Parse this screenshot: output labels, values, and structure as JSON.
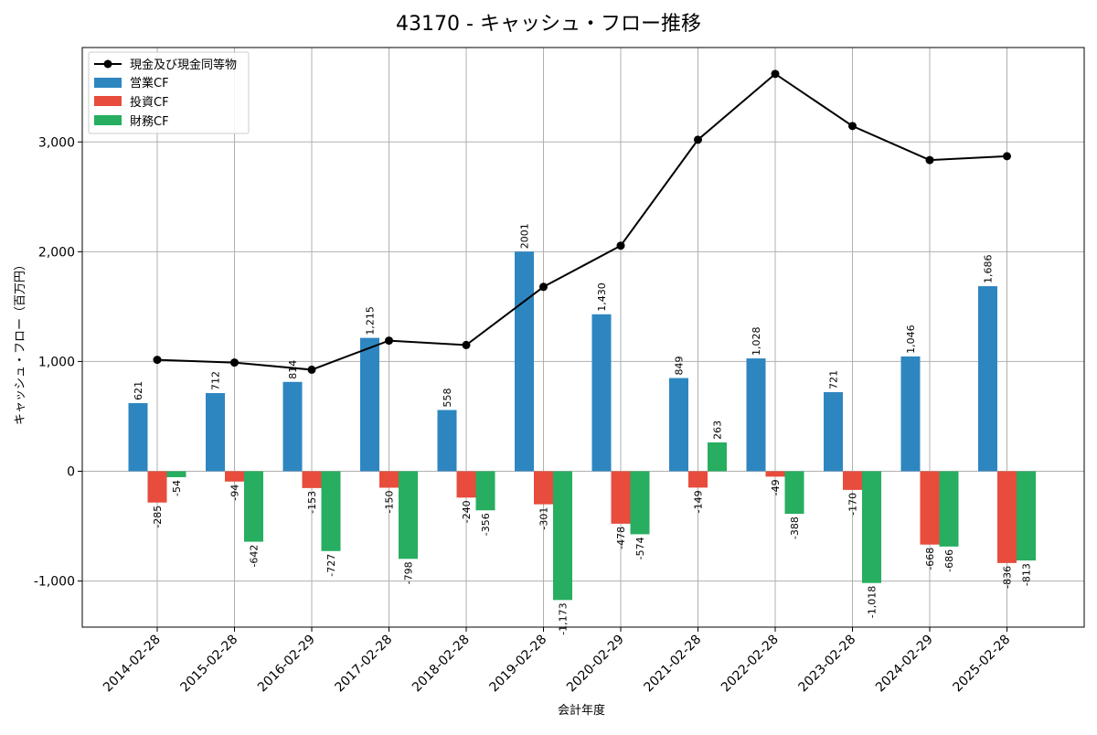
{
  "chart_data": {
    "type": "bar",
    "title": "43170 - キャッシュ・フロー推移",
    "xlabel": "会計年度",
    "ylabel": "キャッシュ・フロー（百万円）",
    "ylim": [
      -1420,
      3860
    ],
    "yticks": [
      -1000,
      0,
      1000,
      2000,
      3000
    ],
    "ytick_labels": [
      "-1,000",
      "0",
      "1,000",
      "2,000",
      "3,000"
    ],
    "grid": true,
    "legend_position": "top-left",
    "categories": [
      "2014-02-28",
      "2015-02-28",
      "2016-02-29",
      "2017-02-28",
      "2018-02-28",
      "2019-02-28",
      "2020-02-29",
      "2021-02-28",
      "2022-02-28",
      "2023-02-28",
      "2024-02-29",
      "2025-02-28"
    ],
    "series": [
      {
        "name": "営業CF",
        "kind": "bar",
        "color": "#2e86c1",
        "values": [
          621,
          712,
          814,
          1215,
          558,
          2001,
          1430,
          849,
          1028,
          721,
          1046,
          1686
        ],
        "labels": [
          "621",
          "712",
          "814",
          "1,215",
          "558",
          "2001",
          "1,430",
          "849",
          "1,028",
          "721",
          "1,046",
          "1,686"
        ]
      },
      {
        "name": "投資CF",
        "kind": "bar",
        "color": "#e74c3c",
        "values": [
          -285,
          -94,
          -153,
          -150,
          -240,
          -301,
          -478,
          -149,
          -49,
          -170,
          -668,
          -836
        ],
        "labels": [
          "-285",
          "-94",
          "-153",
          "-150",
          "-240",
          "-301",
          "-478",
          "-149",
          "-49",
          "-170",
          "-668",
          "-836"
        ]
      },
      {
        "name": "財務CF",
        "kind": "bar",
        "color": "#27ae60",
        "values": [
          -54,
          -642,
          -727,
          -798,
          -356,
          -1173,
          -574,
          263,
          -388,
          -1018,
          -686,
          -813
        ],
        "labels": [
          "-54",
          "-642",
          "-727",
          "-798",
          "-356",
          "-1,173",
          "-574",
          "263",
          "-388",
          "-1,018",
          "-686",
          "-813"
        ]
      },
      {
        "name": "現金及び現金同等物",
        "kind": "line",
        "color": "#000000",
        "values": [
          1015,
          990,
          925,
          1190,
          1150,
          1680,
          2055,
          3020,
          3620,
          3145,
          2835,
          2870
        ]
      }
    ]
  }
}
